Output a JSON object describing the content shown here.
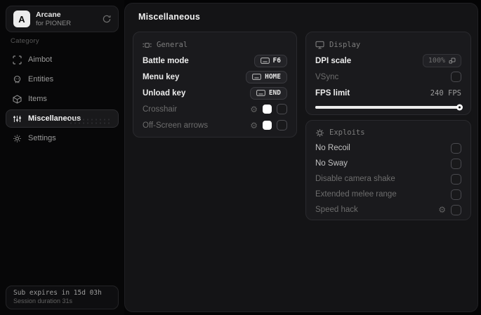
{
  "app": {
    "logo_letter": "A",
    "name": "Arcane",
    "subtitle": "for PIONER",
    "header_icon": "restart-icon"
  },
  "sidebar": {
    "category_label": "Category",
    "items": [
      {
        "label": "Aimbot",
        "icon": "scan-crosshair-icon",
        "selected": false
      },
      {
        "label": "Entities",
        "icon": "skull-icon",
        "selected": false
      },
      {
        "label": "Items",
        "icon": "package-icon",
        "selected": false
      },
      {
        "label": "Miscellaneous",
        "icon": "sliders-icon",
        "selected": true
      },
      {
        "label": "Settings",
        "icon": "gear-icon",
        "selected": false
      }
    ],
    "footer": {
      "line1": "Sub expires in 15d 03h",
      "line2": "Session duration 31s"
    }
  },
  "main": {
    "title": "Miscellaneous",
    "general": {
      "header": "General",
      "header_icon": "tune-icon",
      "rows": [
        {
          "label": "Battle mode",
          "type": "keybind",
          "value": "F6"
        },
        {
          "label": "Menu key",
          "type": "keybind",
          "value": "HOME"
        },
        {
          "label": "Unload key",
          "type": "keybind",
          "value": "END"
        },
        {
          "label": "Crosshair",
          "type": "color-toggle",
          "color": "#ffffff",
          "checked": false
        },
        {
          "label": "Off-Screen arrows",
          "type": "color-toggle",
          "color": "#ffffff",
          "checked": false
        }
      ]
    },
    "display": {
      "header": "Display",
      "header_icon": "monitor-icon",
      "dpi_label": "DPI scale",
      "dpi_value": "100%",
      "vsync_label": "VSync",
      "vsync_checked": false,
      "fps_label": "FPS limit",
      "fps_value": "240 FPS",
      "fps_slider_pct": 100
    },
    "exploits": {
      "header": "Exploits",
      "header_icon": "virus-icon",
      "rows": [
        {
          "label": "No Recoil",
          "checked": false
        },
        {
          "label": "No Sway",
          "checked": false
        },
        {
          "label": "Disable camera shake",
          "checked": false
        },
        {
          "label": "Extended melee range",
          "checked": false
        },
        {
          "label": "Speed hack",
          "checked": false,
          "gear": true
        }
      ]
    }
  },
  "colors": {
    "panel_bg": "#1a1a1d",
    "main_bg": "#141416",
    "sidebar_bg": "#070708",
    "swatch": "#ffffff",
    "slider": "#ededed",
    "accent_text": "#ededed"
  }
}
